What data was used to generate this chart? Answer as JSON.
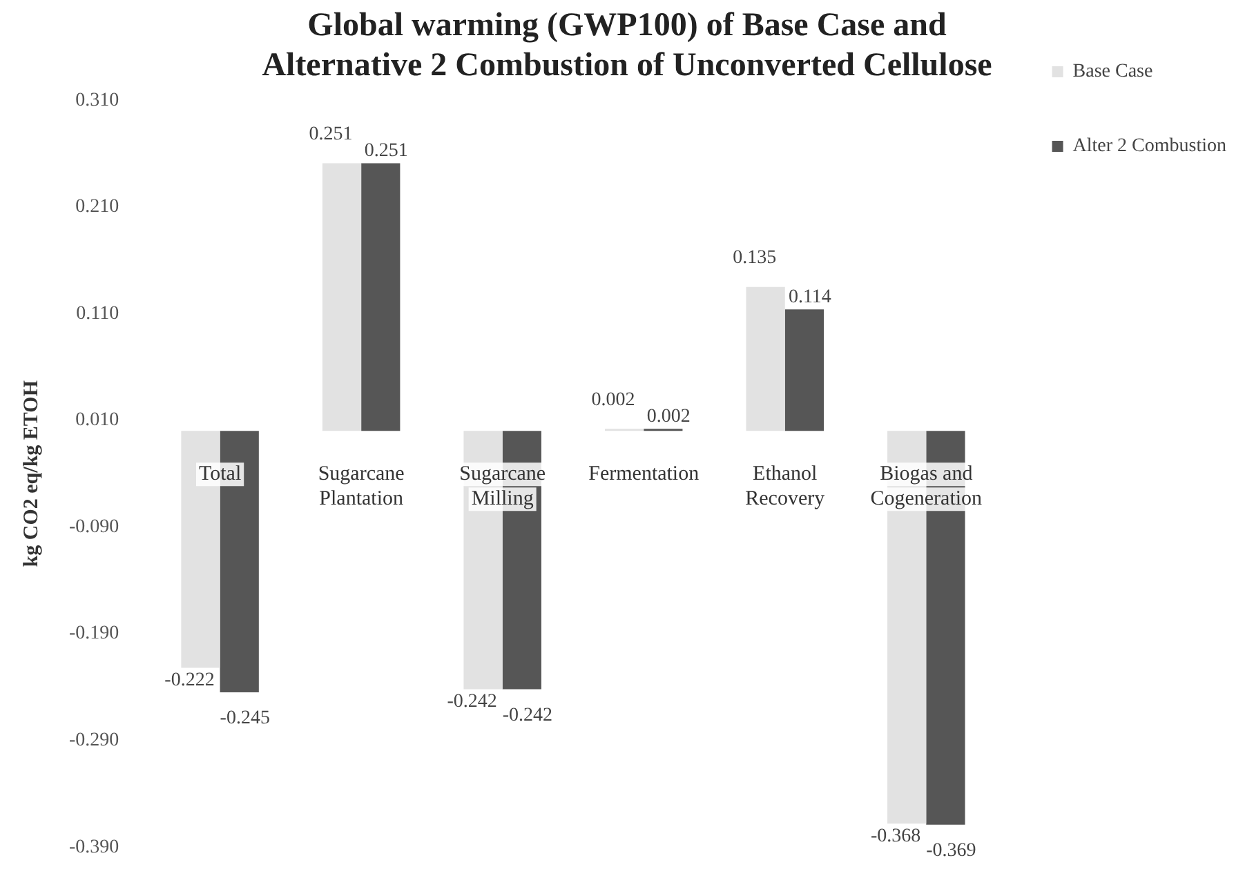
{
  "chart_data": {
    "type": "bar",
    "title": "Global warming (GWP100) of Base Case and Alternative 2 Combustion of Unconverted Cellulose",
    "ylabel": "kg CO2 eq/kg ETOH",
    "categories": [
      "Total",
      "Sugarcane Plantation",
      "Sugarcane Milling",
      "Fermentation",
      "Ethanol Recovery",
      "Biogas and Cogeneration"
    ],
    "series": [
      {
        "name": "Base Case",
        "color": "#e2e2e2",
        "values": [
          -0.222,
          0.251,
          -0.242,
          0.002,
          0.135,
          -0.368
        ]
      },
      {
        "name": "Alter 2 Combustion",
        "color": "#565656",
        "values": [
          -0.245,
          0.251,
          -0.242,
          0.002,
          0.114,
          -0.369
        ]
      }
    ],
    "ylim": [
      -0.39,
      0.31
    ],
    "yticks": [
      {
        "value": 0.31,
        "label": "0.310"
      },
      {
        "value": 0.21,
        "label": "0.210"
      },
      {
        "value": 0.11,
        "label": "0.110"
      },
      {
        "value": 0.01,
        "label": "0.010"
      },
      {
        "value": -0.09,
        "label": "-0.090"
      },
      {
        "value": -0.19,
        "label": "-0.190"
      },
      {
        "value": -0.29,
        "label": "-0.290"
      },
      {
        "value": -0.39,
        "label": "-0.390"
      }
    ],
    "data_labels": true,
    "legend": "right",
    "grid": false
  }
}
